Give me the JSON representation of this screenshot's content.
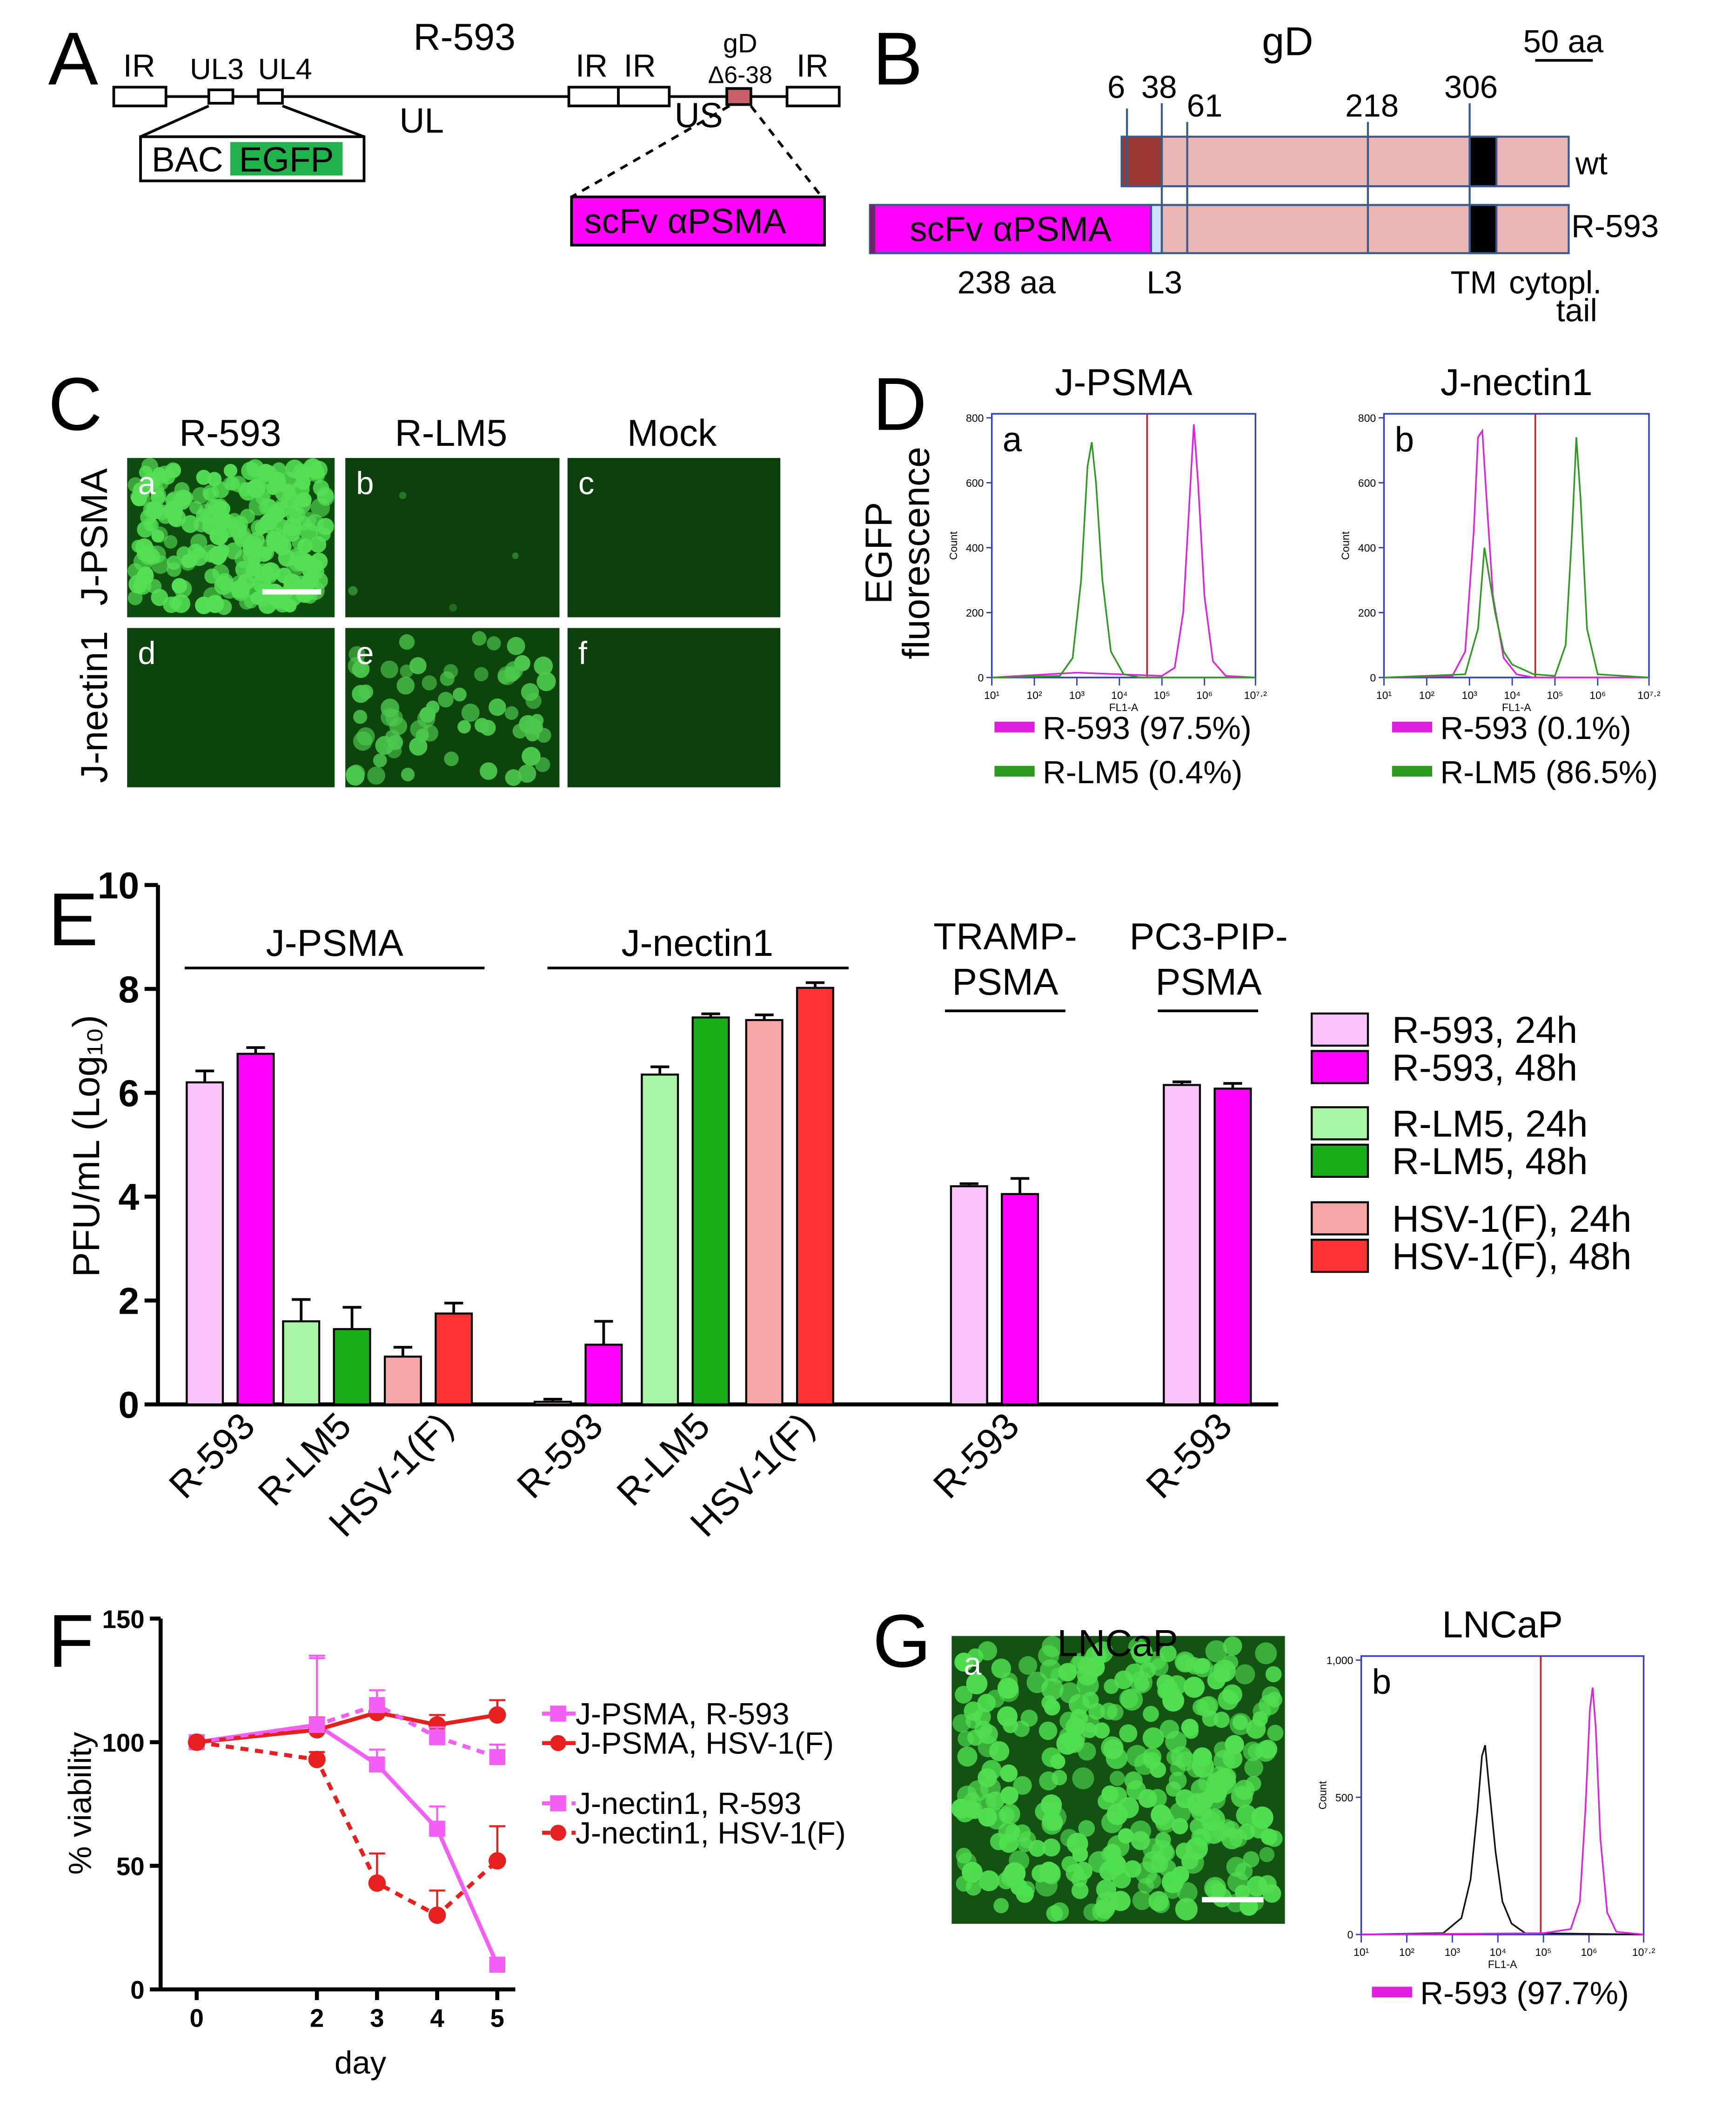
{
  "labels": [
    "A",
    "B",
    "C",
    "D",
    "E",
    "F",
    "G"
  ],
  "panel_a": {
    "title": "R-593",
    "ir": [
      "IR",
      "IR",
      "IR",
      "IR"
    ],
    "ul3": "UL3",
    "ul4": "UL4",
    "ul": "UL",
    "us": "US",
    "gd": "gD",
    "deletion": "Δ6-38",
    "bac": "BAC",
    "egfp": "EGFP",
    "insert": "scFv αPSMA"
  },
  "panel_b": {
    "title": "gD",
    "scale": "50 aa",
    "positions": [
      "6",
      "38",
      "61",
      "218",
      "306"
    ],
    "wt": "wt",
    "insert": "scFv αPSMA",
    "construct": "R-593",
    "insert_length": "238 aa",
    "linker": "L3",
    "tm": "TM",
    "tail": [
      "cytopl.",
      "tail"
    ]
  },
  "panel_c": {
    "columns": [
      "R-593",
      "R-LM5",
      "Mock"
    ],
    "rows": [
      "J-PSMA",
      "J-nectin1"
    ],
    "subpanels": [
      "a",
      "b",
      "c",
      "d",
      "e",
      "f"
    ]
  },
  "panel_d": {
    "ylabel": [
      "EGFP",
      "fluorescence"
    ]
  },
  "panel_g": {
    "title": "LNCaP",
    "subpanel": "a"
  },
  "chart_data": [
    {
      "type": "bar",
      "ylabel": "PFU/mL (Log₁₀)",
      "ylim": [
        0,
        10
      ],
      "yticks": [
        0,
        2,
        4,
        6,
        8,
        10
      ],
      "groups": [
        [
          "J-PSMA"
        ],
        [
          "J-nectin1"
        ],
        [
          "TRAMP-",
          "PSMA"
        ],
        [
          "PC3-PIP-",
          "PSMA"
        ]
      ],
      "categories": [
        "R-593",
        "R-LM5",
        "HSV-1(F)",
        "R-593",
        "R-LM5",
        "HSV-1(F)",
        "R-593",
        "R-593"
      ],
      "series": [
        {
          "name": "R-593, 24h",
          "color": "#f9c2f8",
          "values": [
            6.2,
            null,
            null,
            0.05,
            null,
            null,
            4.2,
            6.15
          ],
          "errors": [
            0.22,
            null,
            null,
            0.05,
            null,
            null,
            0.05,
            0.06
          ]
        },
        {
          "name": "R-593, 48h",
          "color": "#ff00ff",
          "values": [
            6.75,
            null,
            null,
            1.15,
            null,
            null,
            4.05,
            6.08
          ],
          "errors": [
            0.12,
            null,
            null,
            0.45,
            null,
            null,
            0.3,
            0.1
          ]
        },
        {
          "name": "R-LM5, 24h",
          "color": "#a8f5a5",
          "values": [
            null,
            1.6,
            null,
            null,
            6.35,
            null,
            null,
            null
          ],
          "errors": [
            null,
            0.42,
            null,
            null,
            0.15,
            null,
            null,
            null
          ]
        },
        {
          "name": "R-LM5, 48h",
          "color": "#1aad1a",
          "values": [
            null,
            1.45,
            null,
            null,
            7.45,
            null,
            null,
            null
          ],
          "errors": [
            null,
            0.42,
            null,
            null,
            0.07,
            null,
            null,
            null
          ]
        },
        {
          "name": "HSV-1(F), 24h",
          "color": "#f7a5a5",
          "values": [
            null,
            null,
            0.92,
            null,
            null,
            7.4,
            null,
            null
          ],
          "errors": [
            null,
            null,
            0.18,
            null,
            null,
            0.1,
            null,
            null
          ]
        },
        {
          "name": "HSV-1(F), 48h",
          "color": "#ff3333",
          "values": [
            null,
            null,
            1.75,
            null,
            null,
            8.02,
            null,
            null
          ],
          "errors": [
            null,
            null,
            0.2,
            null,
            null,
            0.1,
            null,
            null
          ]
        }
      ]
    },
    {
      "type": "line",
      "xlabel": "day",
      "ylabel": "% viability",
      "x": [
        0,
        2,
        3,
        4,
        5
      ],
      "xlim": [
        -0.6,
        5.3
      ],
      "xticks": [
        0,
        2,
        3,
        4,
        5
      ],
      "ylim": [
        0,
        150
      ],
      "yticks": [
        0,
        50,
        100,
        150
      ],
      "series": [
        {
          "name": "J-PSMA, R-593",
          "color": "#f35ff3",
          "linestyle": "solid",
          "marker": "square",
          "values": [
            100,
            107,
            91,
            65,
            10
          ],
          "errors": [
            0,
            27,
            6,
            9,
            0
          ]
        },
        {
          "name": "J-PSMA, HSV-1(F)",
          "color": "#e5201f",
          "linestyle": "solid",
          "marker": "circle",
          "values": [
            100,
            105,
            112,
            107,
            111
          ],
          "errors": [
            0,
            5,
            4,
            4,
            6
          ]
        },
        {
          "name": "J-nectin1, R-593",
          "color": "#f35ff3",
          "linestyle": "dashed",
          "marker": "square",
          "values": [
            100,
            107,
            115,
            102,
            94
          ],
          "errors": [
            0,
            28,
            6,
            4,
            5
          ]
        },
        {
          "name": "J-nectin1, HSV-1(F)",
          "color": "#e5201f",
          "linestyle": "dashed",
          "marker": "circle",
          "values": [
            100,
            93,
            43,
            30,
            52
          ],
          "errors": [
            0,
            3,
            12,
            10,
            14
          ]
        }
      ]
    },
    {
      "type": "flow",
      "title": "J-PSMA",
      "panel": "a",
      "xlabel": "FL1-A",
      "ylabel": "Count",
      "xlim": [
        1,
        7.2
      ],
      "xticks": [
        {
          "value": 1,
          "label": "10¹"
        },
        {
          "value": 2,
          "label": "10²"
        },
        {
          "value": 3,
          "label": "10³"
        },
        {
          "value": 4,
          "label": "10⁴"
        },
        {
          "value": 5,
          "label": "10⁵"
        },
        {
          "value": 6,
          "label": "10⁶"
        },
        {
          "value": 7.2,
          "label": "10⁷·²"
        }
      ],
      "ylim": [
        0,
        800
      ],
      "yticks": [
        0,
        200,
        400,
        600,
        800
      ],
      "gate": 4.65,
      "series": [
        {
          "name": "R-593 (97.5%)",
          "color": "#e020e0",
          "x": [
            1,
            3,
            4,
            5,
            5.3,
            5.5,
            5.65,
            5.75,
            5.85,
            6,
            6.2,
            6.5,
            7.2
          ],
          "values": [
            0,
            15,
            10,
            5,
            30,
            200,
            550,
            780,
            600,
            250,
            50,
            5,
            0
          ]
        },
        {
          "name": "R-LM5 (0.4%)",
          "color": "#2e9a22",
          "x": [
            1,
            2.6,
            2.9,
            3.1,
            3.25,
            3.35,
            3.45,
            3.6,
            3.8,
            4.1,
            4.5,
            7.2
          ],
          "values": [
            0,
            5,
            60,
            300,
            650,
            725,
            600,
            300,
            80,
            10,
            0,
            0
          ]
        }
      ]
    },
    {
      "type": "flow",
      "title": "J-nectin1",
      "panel": "b",
      "xlabel": "FL1-A",
      "ylabel": "Count",
      "xlim": [
        1,
        7.2
      ],
      "xticks": [
        {
          "value": 1,
          "label": "10¹"
        },
        {
          "value": 2,
          "label": "10²"
        },
        {
          "value": 3,
          "label": "10³"
        },
        {
          "value": 4,
          "label": "10⁴"
        },
        {
          "value": 5,
          "label": "10⁵"
        },
        {
          "value": 6,
          "label": "10⁶"
        },
        {
          "value": 7.2,
          "label": "10⁷·²"
        }
      ],
      "ylim": [
        0,
        800
      ],
      "yticks": [
        0,
        200,
        400,
        600,
        800
      ],
      "gate": 4.54,
      "series": [
        {
          "name": "R-593 (0.1%)",
          "color": "#e020e0",
          "x": [
            1,
            2.6,
            2.9,
            3.1,
            3.2,
            3.3,
            3.4,
            3.55,
            3.8,
            4.1,
            4.5,
            7.2
          ],
          "values": [
            0,
            5,
            80,
            450,
            740,
            760,
            550,
            250,
            60,
            10,
            0,
            0
          ]
        },
        {
          "name": "R-LM5 (86.5%)",
          "color": "#2e9a22",
          "x": [
            1,
            2.9,
            3.2,
            3.35,
            3.6,
            3.8,
            4,
            4.5,
            5,
            5.25,
            5.4,
            5.5,
            5.6,
            5.75,
            6,
            7.2
          ],
          "values": [
            0,
            10,
            150,
            400,
            200,
            80,
            40,
            10,
            5,
            100,
            450,
            740,
            550,
            150,
            10,
            0
          ]
        }
      ]
    },
    {
      "type": "flow",
      "title": "LNCaP",
      "panel": "b",
      "xlabel": "FL1-A",
      "ylabel": "Count",
      "xlim": [
        1,
        7.2
      ],
      "xticks": [
        {
          "value": 1,
          "label": "10¹"
        },
        {
          "value": 2,
          "label": "10²"
        },
        {
          "value": 3,
          "label": "10³"
        },
        {
          "value": 4,
          "label": "10⁴"
        },
        {
          "value": 5,
          "label": "10⁵"
        },
        {
          "value": 6,
          "label": "10⁶"
        },
        {
          "value": 7.2,
          "label": "10⁷·²"
        }
      ],
      "ylim": [
        0,
        1000
      ],
      "yticks": [
        0,
        500,
        {
          "value": 1000,
          "label": "1,000"
        }
      ],
      "gate": 4.94,
      "series": [
        {
          "color": "#111111",
          "x": [
            1,
            2.8,
            3.2,
            3.4,
            3.55,
            3.65,
            3.72,
            3.8,
            3.95,
            4.1,
            4.3,
            4.6,
            7.2
          ],
          "values": [
            0,
            5,
            60,
            200,
            450,
            650,
            690,
            550,
            300,
            120,
            40,
            5,
            0
          ]
        },
        {
          "name": "R-593 (97.7%)",
          "color": "#e020e0",
          "x": [
            1,
            5,
            5.6,
            5.8,
            5.92,
            6.02,
            6.08,
            6.15,
            6.25,
            6.4,
            6.6,
            7.2
          ],
          "values": [
            0,
            5,
            20,
            120,
            450,
            820,
            900,
            750,
            350,
            80,
            10,
            0
          ]
        }
      ]
    }
  ]
}
